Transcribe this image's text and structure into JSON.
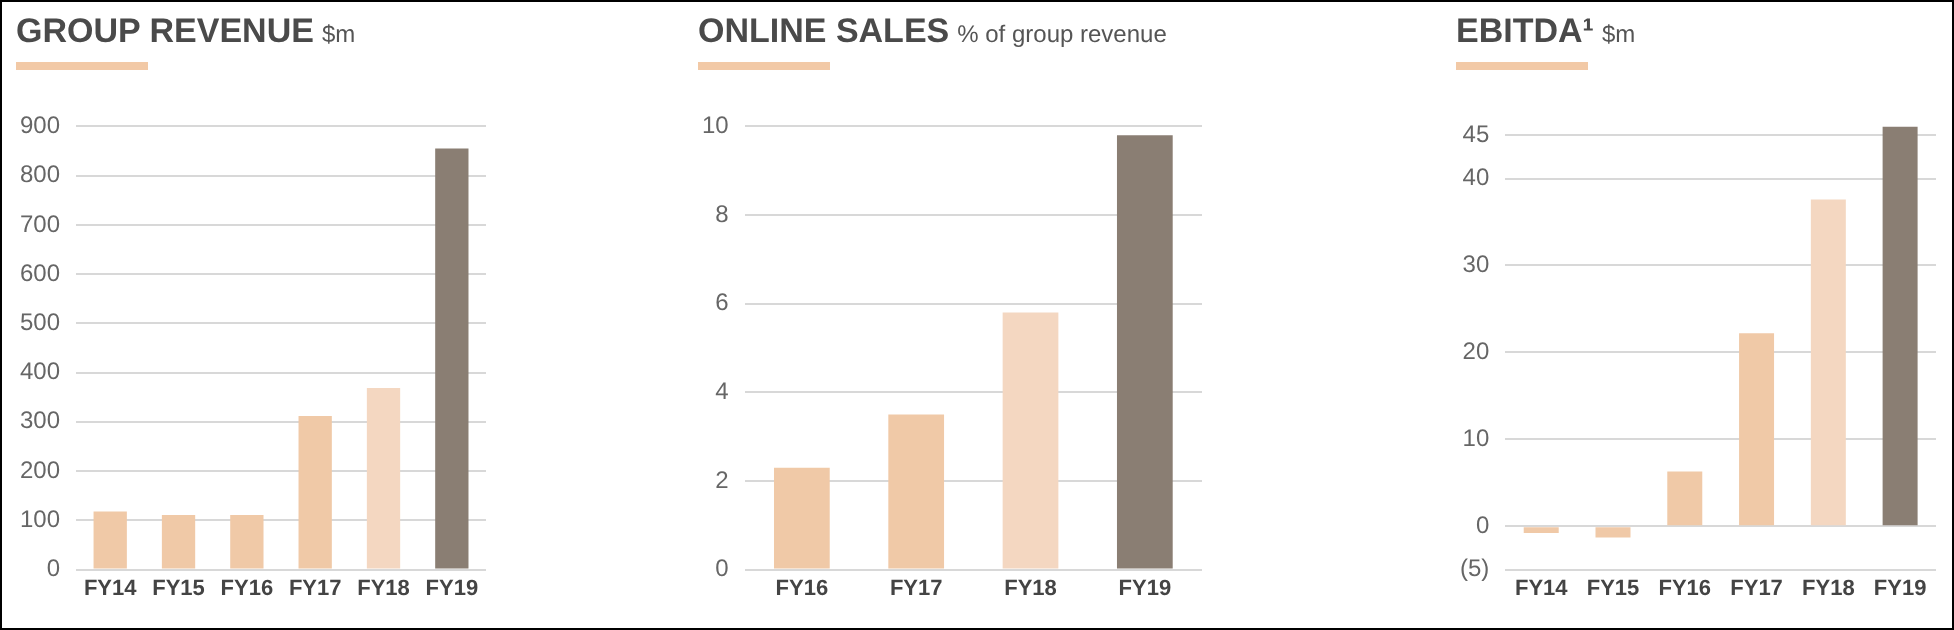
{
  "chart_data": [
    {
      "type": "bar",
      "title": "GROUP REVENUE",
      "subtitle": "$m",
      "categories": [
        "FY14",
        "FY15",
        "FY16",
        "FY17",
        "FY18",
        "FY19"
      ],
      "values": [
        118,
        111,
        111,
        312,
        369,
        855
      ],
      "colors": [
        "#f0c9a7",
        "#f0c9a7",
        "#f0c9a7",
        "#f0c9a7",
        "#f4d7c1",
        "#8a7e73"
      ],
      "ylim": [
        0,
        900
      ],
      "yticks": [
        0,
        100,
        200,
        300,
        400,
        500,
        600,
        700,
        800,
        900
      ],
      "grid": "y",
      "legend": false
    },
    {
      "type": "bar",
      "title": "ONLINE SALES",
      "subtitle": "% of group revenue",
      "categories": [
        "FY16",
        "FY17",
        "FY18",
        "FY19"
      ],
      "values": [
        2.3,
        3.5,
        5.8,
        9.8
      ],
      "colors": [
        "#f0c9a7",
        "#f0c9a7",
        "#f4d7c1",
        "#8a7e73"
      ],
      "ylim": [
        0,
        10
      ],
      "yticks": [
        0,
        2,
        4,
        6,
        8,
        10
      ],
      "grid": "y",
      "legend": false
    },
    {
      "type": "bar",
      "title": "EBITDA¹",
      "subtitle": "$m",
      "categories": [
        "FY14",
        "FY15",
        "FY16",
        "FY17",
        "FY18",
        "FY19"
      ],
      "values": [
        -0.8,
        -1.3,
        6.3,
        22.2,
        37.6,
        46
      ],
      "colors": [
        "#f0c9a7",
        "#f0c9a7",
        "#f0c9a7",
        "#f0c9a7",
        "#f4d7c1",
        "#8a7e73"
      ],
      "ylim": [
        -5,
        46
      ],
      "yticks": [
        {
          "value": -5,
          "label": "(5)"
        },
        0,
        10,
        20,
        30,
        40,
        45
      ],
      "grid": "y",
      "legend": false
    }
  ]
}
